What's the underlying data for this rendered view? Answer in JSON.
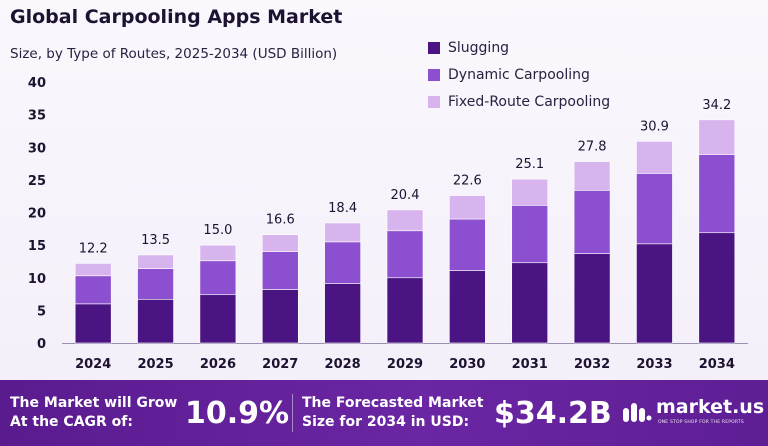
{
  "header": {
    "title": "Global Carpooling Apps Market",
    "subtitle": "Size, by Type of Routes, 2025-2034 (USD Billion)"
  },
  "legend": {
    "items": [
      {
        "label": "Slugging",
        "color": "#4a1583"
      },
      {
        "label": "Dynamic Carpooling",
        "color": "#8b4fcf"
      },
      {
        "label": "Fixed-Route Carpooling",
        "color": "#d8b4ef"
      }
    ]
  },
  "chart_data": {
    "type": "bar",
    "stacked": true,
    "title": "Global Carpooling Apps Market",
    "subtitle": "Size, by Type of Routes, 2025-2034 (USD Billion)",
    "categories": [
      "2024",
      "2025",
      "2026",
      "2027",
      "2028",
      "2029",
      "2030",
      "2031",
      "2032",
      "2033",
      "2034"
    ],
    "totals": [
      12.2,
      13.5,
      15.0,
      16.6,
      18.4,
      20.4,
      22.6,
      25.1,
      27.8,
      30.9,
      34.2
    ],
    "total_labels": [
      "12.2",
      "13.5",
      "15.0",
      "16.6",
      "18.4",
      "20.4",
      "22.6",
      "25.1",
      "27.8",
      "30.9",
      "34.2"
    ],
    "series": [
      {
        "name": "Slugging",
        "color": "#4a1583",
        "values": [
          6.0,
          6.7,
          7.4,
          8.2,
          9.1,
          10.0,
          11.1,
          12.3,
          13.7,
          15.2,
          16.9
        ]
      },
      {
        "name": "Dynamic Carpooling",
        "color": "#8b4fcf",
        "values": [
          4.3,
          4.7,
          5.2,
          5.8,
          6.4,
          7.2,
          7.9,
          8.8,
          9.7,
          10.8,
          12.0
        ]
      },
      {
        "name": "Fixed-Route Carpooling",
        "color": "#d8b4ef",
        "values": [
          1.9,
          2.1,
          2.4,
          2.6,
          2.9,
          3.2,
          3.6,
          4.0,
          4.4,
          4.9,
          5.3
        ]
      }
    ],
    "ylim": [
      0,
      40
    ],
    "yticks": [
      0,
      5,
      10,
      15,
      20,
      25,
      30,
      35,
      40
    ],
    "grid": false,
    "legend_position": "top-right"
  },
  "footer": {
    "cagr_text_line1": "The Market will Grow",
    "cagr_text_line2": "At the CAGR of:",
    "cagr_value": "10.9%",
    "forecast_text_line1": "The Forecasted Market",
    "forecast_text_line2": "Size for 2034 in USD:",
    "forecast_value": "$34.2B",
    "brand": "market.us",
    "brand_tagline": "ONE STOP SHOP FOR THE REPORTS"
  }
}
